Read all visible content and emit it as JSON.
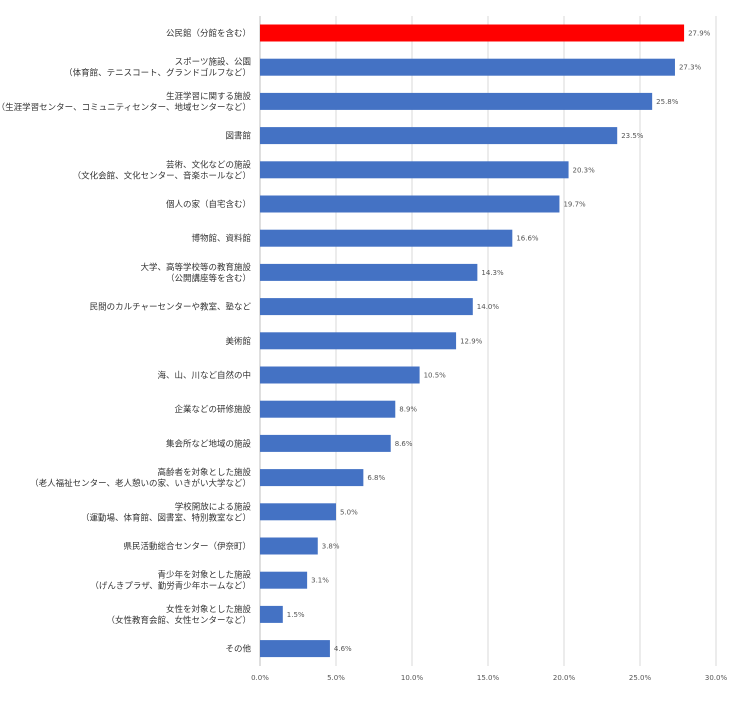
{
  "chart_data": {
    "type": "bar",
    "orientation": "horizontal",
    "categories": [
      [
        "公民館（分館を含む）"
      ],
      [
        "スポーツ施設、公園",
        "（体育館、テニスコート、グランドゴルフなど）"
      ],
      [
        "生涯学習に関する施設",
        "（生涯学習センター、コミュニティセンター、地域センターなど）"
      ],
      [
        "図書館"
      ],
      [
        "芸術、文化などの施設",
        "（文化会館、文化センター、音楽ホールなど）"
      ],
      [
        "個人の家（自宅含む）"
      ],
      [
        "博物館、資料館"
      ],
      [
        "大学、高等学校等の教育施設",
        "（公開講座等を含む）"
      ],
      [
        "民間のカルチャーセンターや教室、塾など"
      ],
      [
        "美術館"
      ],
      [
        "海、山、川など自然の中"
      ],
      [
        "企業などの研修施設"
      ],
      [
        "集会所など地域の施設"
      ],
      [
        "高齢者を対象とした施設",
        "（老人福祉センター、老人憩いの家、いきがい大学など）"
      ],
      [
        "学校開放による施設",
        "（運動場、体育館、図書室、特別教室など）"
      ],
      [
        "県民活動総合センター（伊奈町）"
      ],
      [
        "青少年を対象とした施設",
        "（げんきプラザ、勤労青少年ホームなど）"
      ],
      [
        "女性を対象とした施設",
        "（女性教育会館、女性センターなど）"
      ],
      [
        "その他"
      ]
    ],
    "values": [
      27.9,
      27.3,
      25.8,
      23.5,
      20.3,
      19.7,
      16.6,
      14.3,
      14.0,
      12.9,
      10.5,
      8.9,
      8.6,
      6.8,
      5.0,
      3.8,
      3.1,
      1.5,
      4.6
    ],
    "value_labels": [
      "27.9%",
      "27.3%",
      "25.8%",
      "23.5%",
      "20.3%",
      "19.7%",
      "16.6%",
      "14.3%",
      "14.0%",
      "12.9%",
      "10.5%",
      "8.9%",
      "8.6%",
      "6.8%",
      "5.0%",
      "3.8%",
      "3.1%",
      "1.5%",
      "4.6%"
    ],
    "xlim": [
      0,
      30
    ],
    "ticks": [
      0,
      5,
      10,
      15,
      20,
      25,
      30
    ],
    "tick_labels": [
      "0.0%",
      "5.0%",
      "10.0%",
      "15.0%",
      "20.0%",
      "25.0%",
      "30.0%"
    ],
    "title": "",
    "xlabel": "",
    "ylabel": "",
    "grid": true,
    "legend": "none",
    "colors": {
      "default_bar": "#4472c4",
      "highlight_bar": "#ff0000"
    },
    "highlight_index": 0
  }
}
